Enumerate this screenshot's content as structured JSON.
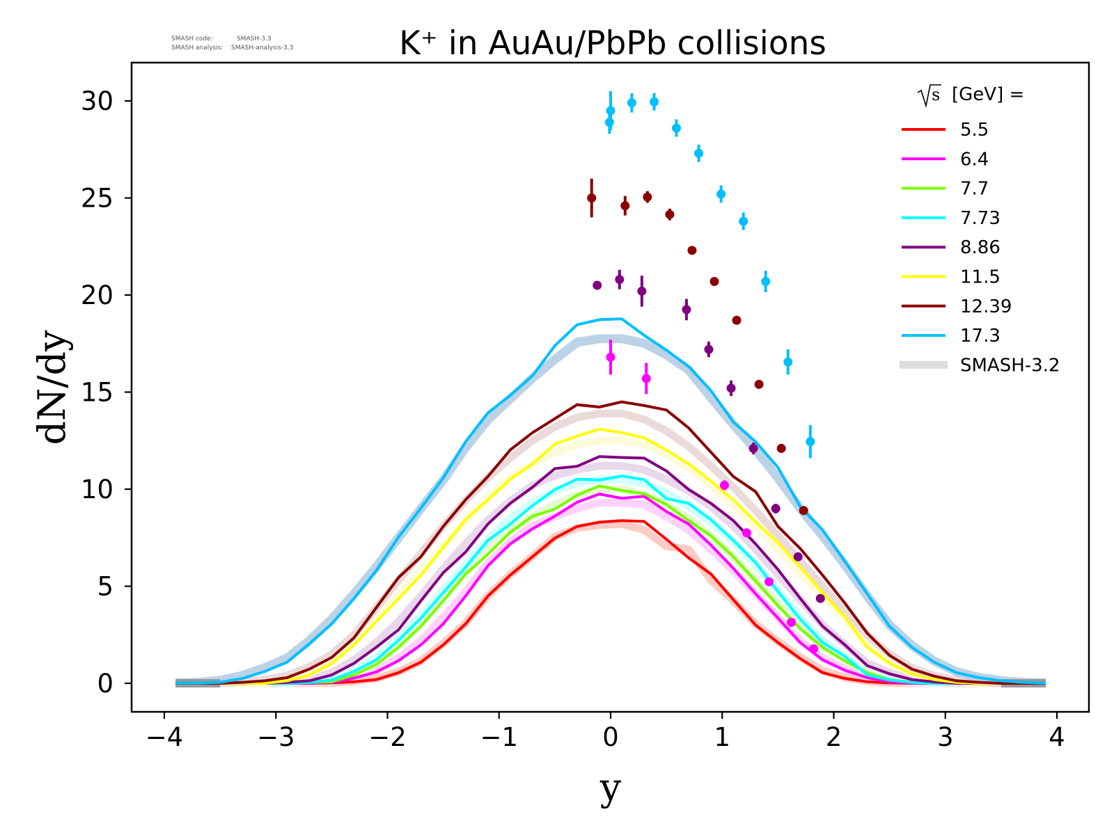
{
  "meta": {
    "code_label": "SMASH code:",
    "code_value": "SMASH-3.3",
    "analysis_label": "SMASH analysis:",
    "analysis_value": "SMASH-analysis-3.3"
  },
  "chart_data": {
    "type": "line",
    "title": "K⁺ in AuAu/PbPb collisions",
    "xlabel": "y",
    "ylabel": "dN/dy",
    "xlim": [
      -4.3,
      4.3
    ],
    "ylim": [
      -1.5,
      32
    ],
    "xticks": [
      -4,
      -3,
      -2,
      -1,
      0,
      1,
      2,
      3,
      4
    ],
    "xtick_labels": [
      "−4",
      "−3",
      "−2",
      "−1",
      "0",
      "1",
      "2",
      "3",
      "4"
    ],
    "yticks": [
      0,
      5,
      10,
      15,
      20,
      25,
      30
    ],
    "ytick_labels": [
      "0",
      "5",
      "10",
      "15",
      "20",
      "25",
      "30"
    ],
    "grid": false,
    "legend": {
      "placement": "top-right",
      "title_prefix": "s",
      "title_suffix": "[GeV] =",
      "reference_label": "SMASH-3.2"
    },
    "x": [
      -3.9,
      -3.7,
      -3.5,
      -3.3,
      -3.1,
      -2.9,
      -2.7,
      -2.5,
      -2.3,
      -2.1,
      -1.9,
      -1.7,
      -1.5,
      -1.3,
      -1.1,
      -0.9,
      -0.7,
      -0.5,
      -0.3,
      -0.1,
      0.1,
      0.3,
      0.5,
      0.7,
      0.9,
      1.1,
      1.3,
      1.5,
      1.7,
      1.9,
      2.1,
      2.3,
      2.5,
      2.7,
      2.9,
      3.1,
      3.3,
      3.5,
      3.7,
      3.9
    ],
    "series": [
      {
        "name": "5.5",
        "color": "#ff0000",
        "band_color": "#ffc8c0",
        "values": [
          0,
          0,
          0,
          0,
          0,
          0,
          0,
          0.02,
          0.08,
          0.19,
          0.55,
          1.09,
          1.98,
          3.06,
          4.49,
          5.57,
          6.52,
          7.48,
          8.08,
          8.3,
          8.38,
          8.34,
          7.42,
          6.46,
          5.63,
          4.31,
          3.0,
          2.1,
          1.27,
          0.55,
          0.25,
          0.08,
          0.02,
          0,
          0,
          0,
          0,
          0,
          0,
          0
        ],
        "reference": [
          0,
          0,
          0,
          0,
          0,
          0,
          0,
          0.03,
          0.1,
          0.25,
          0.6,
          1.15,
          2.05,
          3.1,
          4.5,
          5.6,
          6.55,
          7.55,
          8.0,
          8.15,
          8.2,
          7.9,
          7.05,
          6.9,
          5.3,
          4.25,
          3.05,
          2.15,
          1.35,
          0.65,
          0.3,
          0.1,
          0.03,
          0,
          0,
          0,
          0,
          0,
          0,
          0
        ],
        "points": {
          "x": [],
          "y": [],
          "err": []
        }
      },
      {
        "name": "6.4",
        "color": "#ff00ff",
        "band_color": "#ffd0ff",
        "values": [
          0,
          0,
          0,
          0,
          0,
          0,
          0.02,
          0.05,
          0.27,
          0.58,
          1.17,
          1.98,
          3.06,
          4.49,
          6.05,
          7.18,
          7.96,
          8.61,
          9.33,
          9.75,
          9.53,
          9.63,
          8.85,
          8.2,
          7.12,
          5.92,
          4.61,
          3.36,
          2.1,
          1.21,
          0.67,
          0.29,
          0.08,
          0.02,
          0,
          0,
          0,
          0,
          0,
          0
        ],
        "reference": [
          0,
          0,
          0,
          0,
          0,
          0,
          0.03,
          0.08,
          0.35,
          0.7,
          1.3,
          2.2,
          3.4,
          4.7,
          6.2,
          7.3,
          8.1,
          8.6,
          9.0,
          9.3,
          9.3,
          9.2,
          8.6,
          7.9,
          6.9,
          5.8,
          4.6,
          3.4,
          2.2,
          1.3,
          0.75,
          0.35,
          0.1,
          0.03,
          0,
          0,
          0,
          0,
          0,
          0
        ],
        "points": {
          "x": [
            0.0,
            0.32,
            1.02,
            1.22,
            1.42,
            1.62,
            1.82
          ],
          "y": [
            16.8,
            15.7,
            10.2,
            7.75,
            5.23,
            3.14,
            1.78
          ],
          "err": [
            0.9,
            0.8,
            0.25,
            0.2,
            0.18,
            0.15,
            0.12
          ]
        }
      },
      {
        "name": "7.7",
        "color": "#7cfc00",
        "band_color": "#e4f8d0",
        "values": [
          0,
          0,
          0,
          0,
          0,
          0,
          0.05,
          0.08,
          0.43,
          0.97,
          1.86,
          2.94,
          4.25,
          5.63,
          6.64,
          7.78,
          8.61,
          8.97,
          9.69,
          10.17,
          9.93,
          9.77,
          9.21,
          8.38,
          7.6,
          6.52,
          5.27,
          4.01,
          2.82,
          1.86,
          1.15,
          0.55,
          0.19,
          0.05,
          0,
          0,
          0,
          0,
          0,
          0
        ],
        "reference": [
          0,
          0,
          0,
          0,
          0,
          0,
          0.06,
          0.12,
          0.5,
          1.05,
          2.0,
          3.1,
          4.4,
          5.7,
          6.9,
          7.9,
          8.6,
          9.2,
          9.7,
          10.0,
          10.0,
          9.7,
          9.2,
          8.5,
          7.6,
          6.5,
          5.3,
          4.1,
          2.9,
          1.9,
          1.2,
          0.6,
          0.22,
          0.06,
          0,
          0,
          0,
          0,
          0,
          0
        ]
      },
      {
        "name": "7.73",
        "color": "#00ffff",
        "band_color": "#d0ffff",
        "values": [
          0,
          0,
          0,
          0,
          0,
          0,
          0.05,
          0.17,
          0.61,
          1.21,
          2.22,
          3.36,
          4.67,
          5.98,
          7.36,
          8.2,
          9.15,
          9.98,
          10.52,
          10.47,
          10.68,
          10.49,
          9.51,
          9.27,
          8.43,
          7.36,
          6.22,
          4.73,
          3.3,
          2.1,
          1.39,
          0.43,
          0.17,
          0.05,
          0,
          0,
          0,
          0,
          0,
          0
        ],
        "reference": [
          0,
          0,
          0,
          0,
          0,
          0,
          0.07,
          0.2,
          0.7,
          1.35,
          2.35,
          3.5,
          4.8,
          6.1,
          7.4,
          8.5,
          9.3,
          9.9,
          10.3,
          10.5,
          10.5,
          10.3,
          9.8,
          9.1,
          8.3,
          7.3,
          6.1,
          4.8,
          3.4,
          2.2,
          1.4,
          0.5,
          0.2,
          0.06,
          0,
          0,
          0,
          0,
          0,
          0
        ]
      },
      {
        "name": "8.86",
        "color": "#800080",
        "band_color": "#e8d6ea",
        "values": [
          0,
          0,
          0,
          0,
          0,
          0.05,
          0.13,
          0.43,
          1.03,
          1.86,
          2.76,
          4.25,
          5.69,
          6.76,
          8.2,
          9.27,
          10.1,
          11.06,
          11.18,
          11.68,
          11.63,
          11.6,
          10.94,
          9.98,
          9.27,
          8.38,
          7.18,
          5.86,
          4.37,
          2.94,
          1.98,
          0.91,
          0.49,
          0.19,
          0.07,
          0,
          0,
          0,
          0,
          0
        ],
        "reference": [
          0,
          0,
          0,
          0,
          0,
          0.07,
          0.2,
          0.55,
          1.2,
          2.1,
          3.2,
          4.5,
          5.9,
          7.2,
          8.4,
          9.4,
          10.2,
          10.7,
          11.0,
          11.2,
          11.2,
          11.0,
          10.5,
          9.9,
          9.1,
          8.1,
          6.9,
          5.6,
          4.3,
          3.0,
          2.0,
          1.05,
          0.55,
          0.22,
          0.08,
          0,
          0,
          0,
          0,
          0
        ],
        "points": {
          "x": [
            -0.12,
            0.08,
            0.28,
            0.68,
            0.88,
            1.08,
            1.28,
            1.48,
            1.68,
            1.88
          ],
          "y": [
            20.5,
            20.8,
            20.2,
            19.25,
            17.2,
            15.2,
            12.1,
            9.0,
            6.52,
            4.37
          ],
          "err": [
            0.15,
            0.5,
            0.8,
            0.55,
            0.4,
            0.4,
            0.3,
            0.25,
            0.2,
            0.15
          ]
        }
      },
      {
        "name": "11.5",
        "color": "#ffff00",
        "band_color": "#fbfbd8",
        "values": [
          0,
          0,
          0,
          0,
          0,
          0.13,
          0.43,
          1.03,
          1.98,
          3.18,
          4.37,
          5.57,
          7.0,
          8.43,
          9.45,
          10.52,
          11.3,
          12.32,
          12.73,
          13.09,
          12.91,
          12.64,
          12.02,
          11.3,
          10.41,
          9.45,
          8.32,
          7.24,
          5.98,
          4.67,
          3.42,
          1.86,
          1.03,
          0.49,
          0.19,
          0.05,
          0,
          0,
          0,
          0
        ],
        "reference": [
          0,
          0,
          0,
          0,
          0,
          0.15,
          0.5,
          1.15,
          2.15,
          3.35,
          4.6,
          5.8,
          7.1,
          8.4,
          9.6,
          10.6,
          11.3,
          11.9,
          12.3,
          12.5,
          12.5,
          12.3,
          11.8,
          11.1,
          10.2,
          9.2,
          8.1,
          6.9,
          5.7,
          4.5,
          3.3,
          2.0,
          1.1,
          0.55,
          0.22,
          0.07,
          0,
          0,
          0,
          0
        ]
      },
      {
        "name": "12.39",
        "color": "#8b0000",
        "band_color": "#ead8d8",
        "values": [
          0,
          0,
          0,
          0.05,
          0.13,
          0.29,
          0.73,
          1.33,
          2.34,
          3.9,
          5.45,
          6.52,
          8.08,
          9.45,
          10.65,
          12.02,
          12.91,
          13.63,
          14.35,
          14.23,
          14.5,
          14.31,
          14.08,
          13.15,
          11.9,
          10.65,
          9.87,
          8.08,
          6.94,
          5.57,
          4.13,
          2.58,
          1.44,
          0.73,
          0.37,
          0.13,
          0.05,
          0,
          0,
          0
        ],
        "reference": [
          0,
          0,
          0,
          0.07,
          0.18,
          0.4,
          0.85,
          1.5,
          2.5,
          3.9,
          5.3,
          6.7,
          8.1,
          9.4,
          10.6,
          11.6,
          12.5,
          13.2,
          13.7,
          13.9,
          13.9,
          13.6,
          13.0,
          12.2,
          11.2,
          10.1,
          8.9,
          7.6,
          6.3,
          5.0,
          3.7,
          2.5,
          1.5,
          0.8,
          0.4,
          0.15,
          0.06,
          0,
          0,
          0
        ],
        "points": {
          "x": [
            -0.17,
            0.13,
            0.33,
            0.53,
            0.73,
            0.93,
            1.13,
            1.33,
            1.53,
            1.73
          ],
          "y": [
            25.0,
            24.6,
            25.05,
            24.15,
            22.3,
            20.7,
            18.7,
            15.4,
            12.1,
            8.9
          ],
          "err": [
            1.0,
            0.5,
            0.3,
            0.3,
            0.2,
            0.15,
            0.15,
            0.15,
            0.15,
            0.15
          ]
        }
      },
      {
        "name": "17.3",
        "color": "#00bfff",
        "band_color": "#b8d0e6",
        "values": [
          0.01,
          0.01,
          0.05,
          0.25,
          0.61,
          1.09,
          2.04,
          3.06,
          4.37,
          5.81,
          7.54,
          9.03,
          10.58,
          12.44,
          13.93,
          14.83,
          15.84,
          17.39,
          18.47,
          18.73,
          18.77,
          17.93,
          17.16,
          16.32,
          15.07,
          13.46,
          12.44,
          11.12,
          9.09,
          7.9,
          6.28,
          4.61,
          2.94,
          1.86,
          1.09,
          0.55,
          0.29,
          0.13,
          0.05,
          0.01
        ],
        "reference": [
          0.02,
          0.05,
          0.15,
          0.4,
          0.8,
          1.3,
          2.2,
          3.3,
          4.6,
          6.0,
          7.5,
          9.0,
          10.47,
          12.14,
          13.57,
          14.65,
          15.72,
          16.68,
          17.57,
          17.75,
          17.75,
          17.52,
          16.92,
          16.14,
          14.71,
          13.33,
          12.02,
          10.58,
          9.0,
          7.6,
          6.1,
          4.5,
          3.0,
          1.95,
          1.15,
          0.6,
          0.3,
          0.14,
          0.05,
          0.02
        ],
        "points": {
          "x": [
            -0.01,
            0.0,
            0.19,
            0.39,
            0.59,
            0.79,
            0.99,
            1.19,
            1.39,
            1.59,
            1.79
          ],
          "y": [
            28.9,
            29.5,
            29.9,
            29.95,
            28.6,
            27.3,
            25.2,
            23.8,
            20.7,
            16.55,
            12.45
          ],
          "err": [
            0.6,
            1.0,
            0.5,
            0.45,
            0.45,
            0.45,
            0.45,
            0.45,
            0.55,
            0.65,
            0.85
          ]
        }
      }
    ],
    "reference_color": "#dddddd"
  }
}
